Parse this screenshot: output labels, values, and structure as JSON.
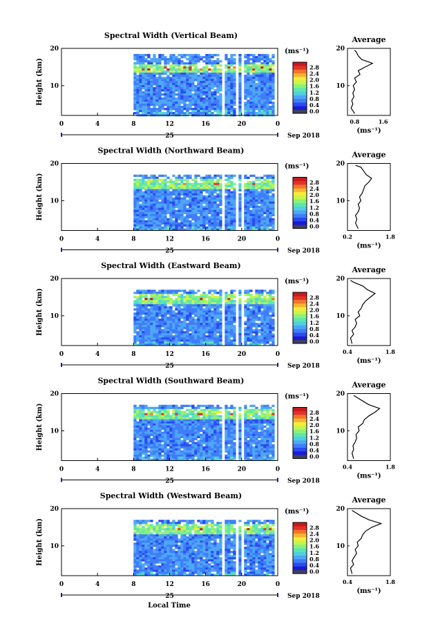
{
  "figure": {
    "xlabel": "Local Time",
    "month_label": "Sep 2018",
    "day_label": "25",
    "height_label": "Height (km)",
    "unit_label": "(ms⁻¹)",
    "average_title": "Average"
  },
  "colorbar": {
    "ticks": [
      "0.0",
      "0.4",
      "0.8",
      "1.2",
      "1.6",
      "2.0",
      "2.4",
      "2.8"
    ],
    "range": [
      0,
      3.0
    ],
    "colors": [
      "#404060",
      "#1a1ad6",
      "#2a4bf0",
      "#3f7dfb",
      "#4ea6f5",
      "#4fd0e0",
      "#5de6b0",
      "#8ef07a",
      "#c7f54a",
      "#f5ec3a",
      "#f7b531",
      "#f4742a",
      "#e3322a",
      "#c81a1a"
    ]
  },
  "chart_data": [
    {
      "type": "heatmap",
      "title": "Spectral Width (Vertical Beam)",
      "xlabel": "Local Time",
      "ylabel": "Height (km)",
      "xlim": [
        0,
        24
      ],
      "ylim": [
        2,
        20
      ],
      "xticks": [
        "0",
        "4",
        "8",
        "12",
        "16",
        "20",
        "0"
      ],
      "yticks": [
        "10",
        "20"
      ],
      "data_start_hour": 8,
      "gaps_hours": [
        [
          17.7,
          18.0
        ],
        [
          19.2,
          19.5
        ],
        [
          19.9,
          20.1
        ]
      ],
      "average": {
        "title": "Average",
        "xlabel": "(ms⁻¹)",
        "xticks": [
          "0.8",
          "1.6"
        ],
        "xlim": [
          0.6,
          1.8
        ],
        "heights": [
          2.5,
          4,
          5,
          6,
          7,
          8,
          9,
          10,
          11,
          12,
          13,
          14,
          15,
          16,
          17,
          18,
          19,
          19.5
        ],
        "values": [
          0.8,
          0.7,
          0.75,
          0.72,
          0.78,
          0.75,
          0.8,
          0.76,
          0.85,
          0.8,
          0.95,
          0.9,
          1.1,
          1.3,
          1.0,
          0.9,
          0.85,
          0.8
        ]
      }
    },
    {
      "type": "heatmap",
      "title": "Spectral Width (Northward Beam)",
      "xlabel": "Local Time",
      "ylabel": "Height (km)",
      "xlim": [
        0,
        24
      ],
      "ylim": [
        2,
        20
      ],
      "xticks": [
        "0",
        "4",
        "8",
        "12",
        "16",
        "20",
        "0"
      ],
      "yticks": [
        "10",
        "20"
      ],
      "data_start_hour": 8,
      "gaps_hours": [
        [
          17.7,
          18.0
        ],
        [
          19.2,
          19.5
        ],
        [
          19.9,
          20.1
        ]
      ],
      "average": {
        "title": "Average",
        "xlabel": "(ms⁻¹)",
        "xticks": [
          "0.2",
          "1.8"
        ],
        "xlim": [
          0.2,
          1.8
        ],
        "heights": [
          2.5,
          4,
          5,
          6,
          7,
          8,
          9,
          10,
          11,
          12,
          13,
          14,
          15,
          16,
          17,
          18,
          19,
          19.5
        ],
        "values": [
          0.6,
          0.5,
          0.55,
          0.5,
          0.6,
          0.65,
          0.6,
          0.7,
          0.65,
          0.75,
          0.8,
          0.85,
          1.0,
          1.1,
          0.9,
          0.8,
          0.7,
          0.5
        ]
      }
    },
    {
      "type": "heatmap",
      "title": "Spectral Width (Eastward Beam)",
      "xlabel": "Local Time",
      "ylabel": "Height (km)",
      "xlim": [
        0,
        24
      ],
      "ylim": [
        2,
        20
      ],
      "xticks": [
        "0",
        "4",
        "8",
        "12",
        "16",
        "20",
        "0"
      ],
      "yticks": [
        "10",
        "20"
      ],
      "data_start_hour": 8,
      "gaps_hours": [
        [
          17.7,
          18.0
        ],
        [
          19.2,
          19.5
        ],
        [
          19.9,
          20.1
        ]
      ],
      "average": {
        "title": "Average",
        "xlabel": "(ms⁻¹)",
        "xticks": [
          "0.4",
          "1.8"
        ],
        "xlim": [
          0.4,
          1.8
        ],
        "heights": [
          2.5,
          4,
          5,
          6,
          7,
          8,
          9,
          10,
          11,
          12,
          13,
          14,
          15,
          16,
          17,
          18,
          19,
          19.5
        ],
        "values": [
          0.55,
          0.5,
          0.6,
          0.55,
          0.65,
          0.7,
          0.65,
          0.8,
          0.75,
          0.85,
          0.9,
          1.0,
          1.15,
          1.3,
          1.05,
          0.9,
          0.6,
          0.5
        ]
      }
    },
    {
      "type": "heatmap",
      "title": "Spectral Width (Southward Beam)",
      "xlabel": "Local Time",
      "ylabel": "Height (km)",
      "xlim": [
        0,
        24
      ],
      "ylim": [
        2,
        20
      ],
      "xticks": [
        "0",
        "4",
        "8",
        "12",
        "16",
        "20",
        "0"
      ],
      "yticks": [
        "10",
        "20"
      ],
      "data_start_hour": 8,
      "gaps_hours": [
        [
          17.7,
          18.0
        ],
        [
          19.2,
          19.5
        ],
        [
          19.9,
          20.1
        ]
      ],
      "average": {
        "title": "Average",
        "xlabel": "(ms⁻¹)",
        "xticks": [
          "0.4",
          "1.8"
        ],
        "xlim": [
          0.4,
          1.8
        ],
        "heights": [
          2.5,
          4,
          5,
          6,
          7,
          8,
          9,
          10,
          11,
          12,
          13,
          14,
          15,
          16,
          17,
          18,
          19,
          19.5
        ],
        "values": [
          0.6,
          0.55,
          0.6,
          0.58,
          0.65,
          0.7,
          0.68,
          0.78,
          0.75,
          0.9,
          0.95,
          1.1,
          1.3,
          1.45,
          1.1,
          0.9,
          0.7,
          0.6
        ]
      }
    },
    {
      "type": "heatmap",
      "title": "Spectral Width (Westward Beam)",
      "xlabel": "Local Time",
      "ylabel": "Height (km)",
      "xlim": [
        0,
        24
      ],
      "ylim": [
        2,
        20
      ],
      "xticks": [
        "0",
        "4",
        "8",
        "12",
        "16",
        "20",
        "0"
      ],
      "yticks": [
        "10",
        "20"
      ],
      "data_start_hour": 8,
      "gaps_hours": [
        [
          17.7,
          18.0
        ],
        [
          19.2,
          19.5
        ],
        [
          19.9,
          20.1
        ]
      ],
      "average": {
        "title": "Average",
        "xlabel": "(ms⁻¹)",
        "xticks": [
          "0.4",
          "1.8"
        ],
        "xlim": [
          0.4,
          1.8
        ],
        "heights": [
          2.5,
          4,
          5,
          6,
          7,
          8,
          9,
          10,
          11,
          12,
          13,
          14,
          15,
          16,
          17,
          18,
          19,
          19.5
        ],
        "values": [
          0.55,
          0.5,
          0.6,
          0.55,
          0.62,
          0.7,
          0.65,
          0.75,
          0.72,
          0.85,
          0.9,
          1.0,
          1.2,
          1.5,
          1.1,
          0.85,
          0.65,
          0.55
        ]
      }
    }
  ]
}
